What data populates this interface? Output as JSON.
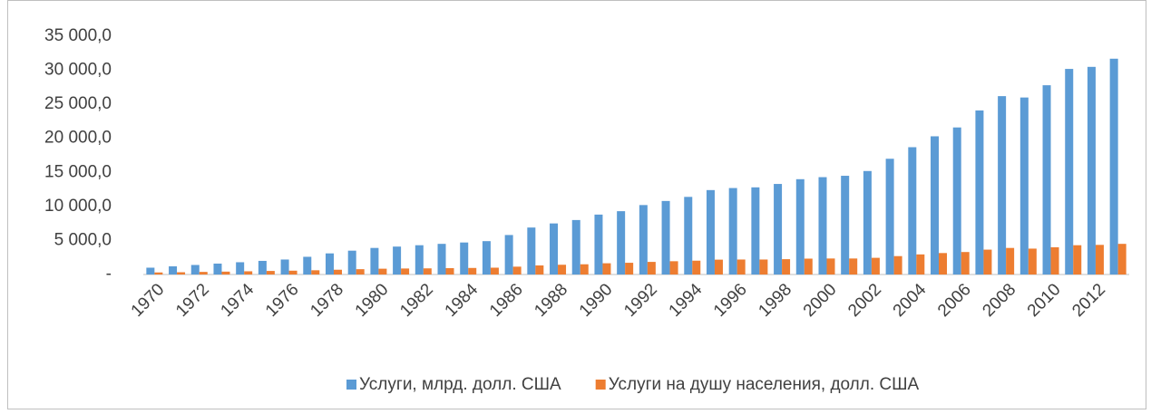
{
  "chart_data": {
    "type": "bar",
    "categories": [
      "1970",
      null,
      "1972",
      null,
      "1974",
      null,
      "1976",
      null,
      "1978",
      null,
      "1980",
      null,
      "1982",
      null,
      "1984",
      null,
      "1986",
      null,
      "1988",
      null,
      "1990",
      null,
      "1992",
      null,
      "1994",
      null,
      "1996",
      null,
      "1998",
      null,
      "2000",
      null,
      "2002",
      null,
      "2004",
      null,
      "2006",
      null,
      "2008",
      null,
      "2010",
      null,
      "2012",
      null
    ],
    "series": [
      {
        "name": "Услуги, млрд. долл. США",
        "color": "#5b9bd5",
        "values": [
          1000,
          1200,
          1400,
          1600,
          1800,
          2000,
          2200,
          2600,
          3100,
          3500,
          3900,
          4100,
          4300,
          4500,
          4700,
          4900,
          5800,
          6900,
          7500,
          8000,
          8800,
          9300,
          10200,
          10800,
          11400,
          12400,
          12700,
          12800,
          13300,
          14000,
          14300,
          14500,
          15200,
          17000,
          18700,
          20300,
          21600,
          24100,
          26200,
          26000,
          27800,
          30200,
          30500,
          31700
        ]
      },
      {
        "name": "Услуги на душу населения, долл. США",
        "color": "#ed7d31",
        "values": [
          300,
          330,
          380,
          420,
          470,
          520,
          560,
          620,
          700,
          780,
          850,
          880,
          900,
          930,
          960,
          1000,
          1150,
          1330,
          1430,
          1500,
          1650,
          1720,
          1850,
          1950,
          2030,
          2180,
          2200,
          2200,
          2250,
          2330,
          2350,
          2350,
          2450,
          2700,
          2950,
          3150,
          3300,
          3650,
          3900,
          3800,
          4000,
          4300,
          4350,
          4500
        ]
      }
    ],
    "ylim": [
      0,
      35000
    ],
    "yticks": [
      {
        "value": 0,
        "label": "-"
      },
      {
        "value": 5000,
        "label": "5 000,0"
      },
      {
        "value": 10000,
        "label": "10 000,0"
      },
      {
        "value": 15000,
        "label": "15 000,0"
      },
      {
        "value": 20000,
        "label": "20 000,0"
      },
      {
        "value": 25000,
        "label": "25 000,0"
      },
      {
        "value": 30000,
        "label": "30 000,0"
      },
      {
        "value": 35000,
        "label": "35 000,0"
      }
    ],
    "grid": false,
    "legend": "bottom"
  }
}
